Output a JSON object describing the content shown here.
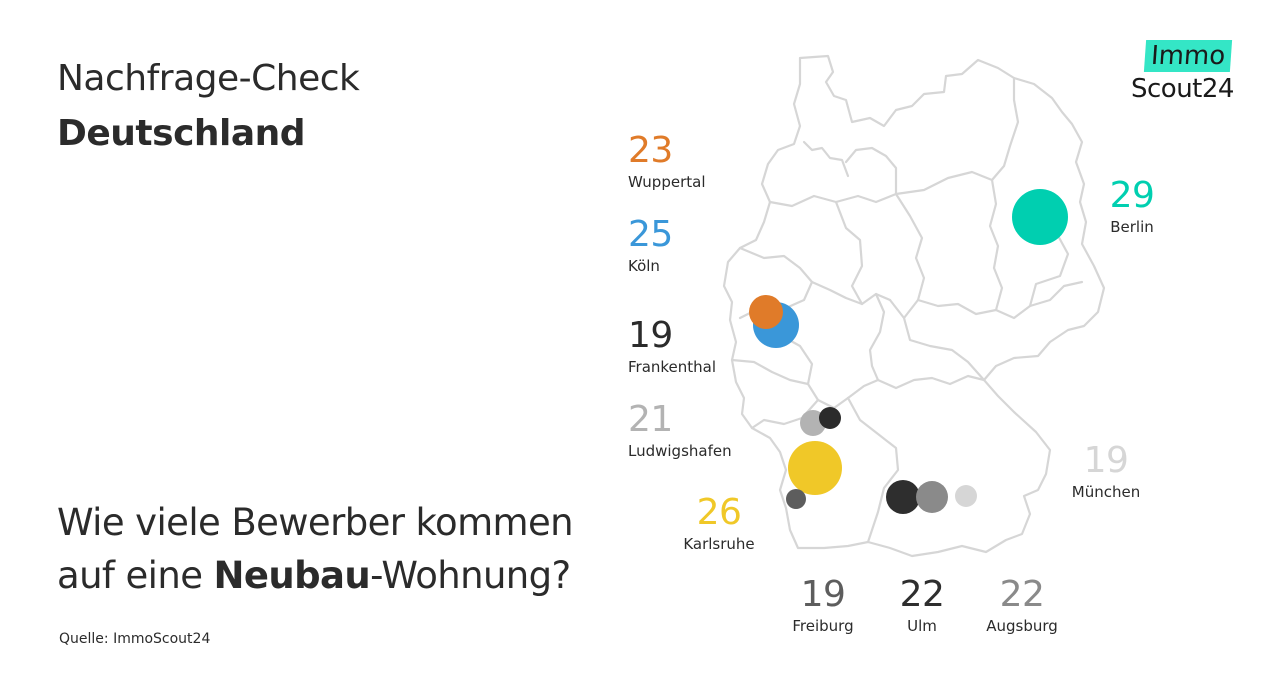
{
  "header": {
    "title_line1": "Nachfrage-Check",
    "title_line2": "Deutschland"
  },
  "question": {
    "part1": "Wie viele Bewerber kommen",
    "part2_pre": "auf eine ",
    "part2_bold": "Neubau",
    "part2_post": "-Wohnung?"
  },
  "source": "Quelle: ImmoScout24",
  "logo": {
    "line1": "Immo",
    "line2": "Scout24"
  },
  "colors": {
    "wuppertal": "#e07b29",
    "koeln": "#3a97d9",
    "frankenthal": "#2b2b2b",
    "ludwigshafen": "#b3b3b3",
    "muenchen": "#d6d6d6",
    "karlsruhe": "#f0c828",
    "berlin": "#00cfb0",
    "freiburg": "#5d5d5d",
    "ulm": "#2e2e2e",
    "augsburg": "#8a8a8a",
    "map_border": "#d6d6d6",
    "logo_accent": "#34e6c6"
  },
  "cities": [
    {
      "id": "wuppertal",
      "value": "23",
      "name": "Wuppertal"
    },
    {
      "id": "koeln",
      "value": "25",
      "name": "Köln"
    },
    {
      "id": "frankenthal",
      "value": "19",
      "name": "Frankenthal"
    },
    {
      "id": "ludwigshafen",
      "value": "21",
      "name": "Ludwigshafen"
    },
    {
      "id": "muenchen",
      "value": "19",
      "name": "München"
    },
    {
      "id": "karlsruhe",
      "value": "26",
      "name": "Karlsruhe"
    },
    {
      "id": "berlin",
      "value": "29",
      "name": "Berlin"
    },
    {
      "id": "freiburg",
      "value": "19",
      "name": "Freiburg"
    },
    {
      "id": "ulm",
      "value": "22",
      "name": "Ulm"
    },
    {
      "id": "augsburg",
      "value": "22",
      "name": "Augsburg"
    }
  ]
}
